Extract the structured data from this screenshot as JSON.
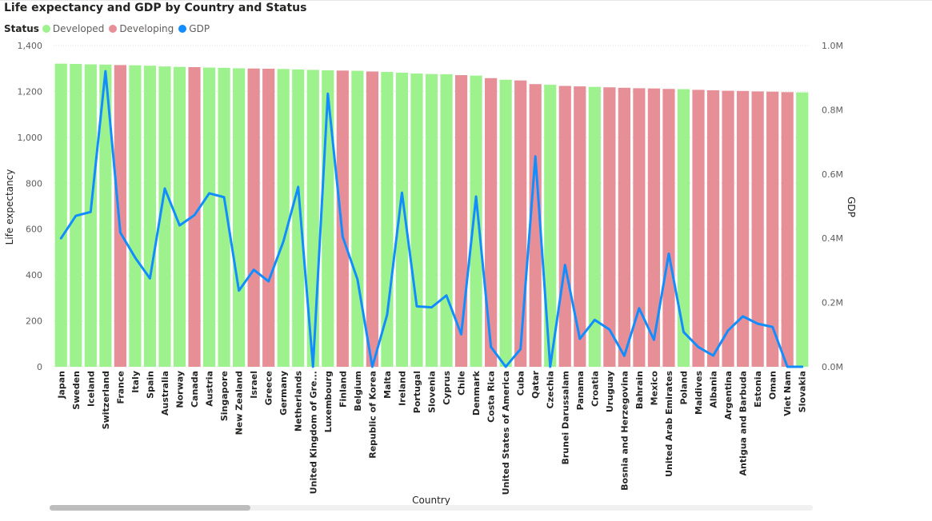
{
  "title": "Life expectancy and GDP by Country and Status",
  "legend": {
    "title": "Status",
    "items": [
      {
        "label": "Developed",
        "color": "#9ef28e"
      },
      {
        "label": "Developing",
        "color": "#e78f97"
      },
      {
        "label": "GDP",
        "color": "#118dff"
      }
    ]
  },
  "chart_data": {
    "type": "bar",
    "title": "Life expectancy and GDP by Country and Status",
    "xlabel": "Country",
    "ylabel": "Life expectancy",
    "y2label": "GDP",
    "ylim": [
      0,
      1400
    ],
    "y2lim": [
      0,
      1000000
    ],
    "yticks": [
      "0",
      "200",
      "400",
      "600",
      "800",
      "1,000",
      "1,200",
      "1,400"
    ],
    "y2ticks": [
      "0.0M",
      "0.2M",
      "0.4M",
      "0.6M",
      "0.8M",
      "1.0M"
    ],
    "grid": true,
    "legend_position": "top-left",
    "categories": [
      "Japan",
      "Sweden",
      "Iceland",
      "Switzerland",
      "France",
      "Italy",
      "Spain",
      "Australia",
      "Norway",
      "Canada",
      "Austria",
      "Singapore",
      "New Zealand",
      "Israel",
      "Greece",
      "Germany",
      "Netherlands",
      "United Kingdom of Gre...",
      "Luxembourg",
      "Finland",
      "Belgium",
      "Republic of Korea",
      "Malta",
      "Ireland",
      "Portugal",
      "Slovenia",
      "Cyprus",
      "Chile",
      "Denmark",
      "Costa Rica",
      "United States of America",
      "Cuba",
      "Qatar",
      "Czechia",
      "Brunei Darussalam",
      "Panama",
      "Croatia",
      "Uruguay",
      "Bosnia and Herzegovina",
      "Bahrain",
      "Mexico",
      "United Arab Emirates",
      "Poland",
      "Maldives",
      "Albania",
      "Argentina",
      "Antigua and Barbuda",
      "Estonia",
      "Oman",
      "Viet Nam",
      "Slovakia"
    ],
    "status": [
      "Developed",
      "Developed",
      "Developed",
      "Developed",
      "Developing",
      "Developed",
      "Developed",
      "Developed",
      "Developed",
      "Developing",
      "Developed",
      "Developed",
      "Developed",
      "Developing",
      "Developing",
      "Developed",
      "Developed",
      "Developed",
      "Developed",
      "Developing",
      "Developed",
      "Developing",
      "Developed",
      "Developed",
      "Developed",
      "Developed",
      "Developed",
      "Developing",
      "Developed",
      "Developing",
      "Developed",
      "Developing",
      "Developing",
      "Developed",
      "Developing",
      "Developing",
      "Developed",
      "Developing",
      "Developing",
      "Developing",
      "Developing",
      "Developing",
      "Developed",
      "Developing",
      "Developing",
      "Developing",
      "Developing",
      "Developing",
      "Developing",
      "Developing",
      "Developed"
    ],
    "series": [
      {
        "name": "Life expectancy",
        "type": "bar",
        "axis": "left",
        "values": [
          1321,
          1320,
          1318,
          1317,
          1315,
          1314,
          1312,
          1309,
          1307,
          1306,
          1304,
          1303,
          1301,
          1300,
          1299,
          1298,
          1296,
          1294,
          1292,
          1291,
          1290,
          1287,
          1285,
          1282,
          1278,
          1276,
          1275,
          1271,
          1269,
          1258,
          1251,
          1248,
          1232,
          1229,
          1224,
          1222,
          1220,
          1218,
          1216,
          1214,
          1213,
          1211,
          1210,
          1207,
          1205,
          1203,
          1202,
          1200,
          1199,
          1197,
          1196
        ]
      },
      {
        "name": "GDP",
        "type": "line",
        "axis": "right",
        "values": [
          400000,
          470000,
          482000,
          920000,
          418000,
          340000,
          275000,
          555000,
          440000,
          472000,
          540000,
          528000,
          237000,
          302000,
          266000,
          390000,
          560000,
          0,
          850000,
          405000,
          272000,
          0,
          162000,
          542000,
          188000,
          185000,
          222000,
          101000,
          530000,
          62000,
          0,
          55000,
          655000,
          0,
          317000,
          87000,
          146000,
          116000,
          34000,
          182000,
          84000,
          352000,
          108000,
          61000,
          35000,
          113000,
          157000,
          134000,
          124000,
          0,
          0
        ]
      }
    ]
  }
}
